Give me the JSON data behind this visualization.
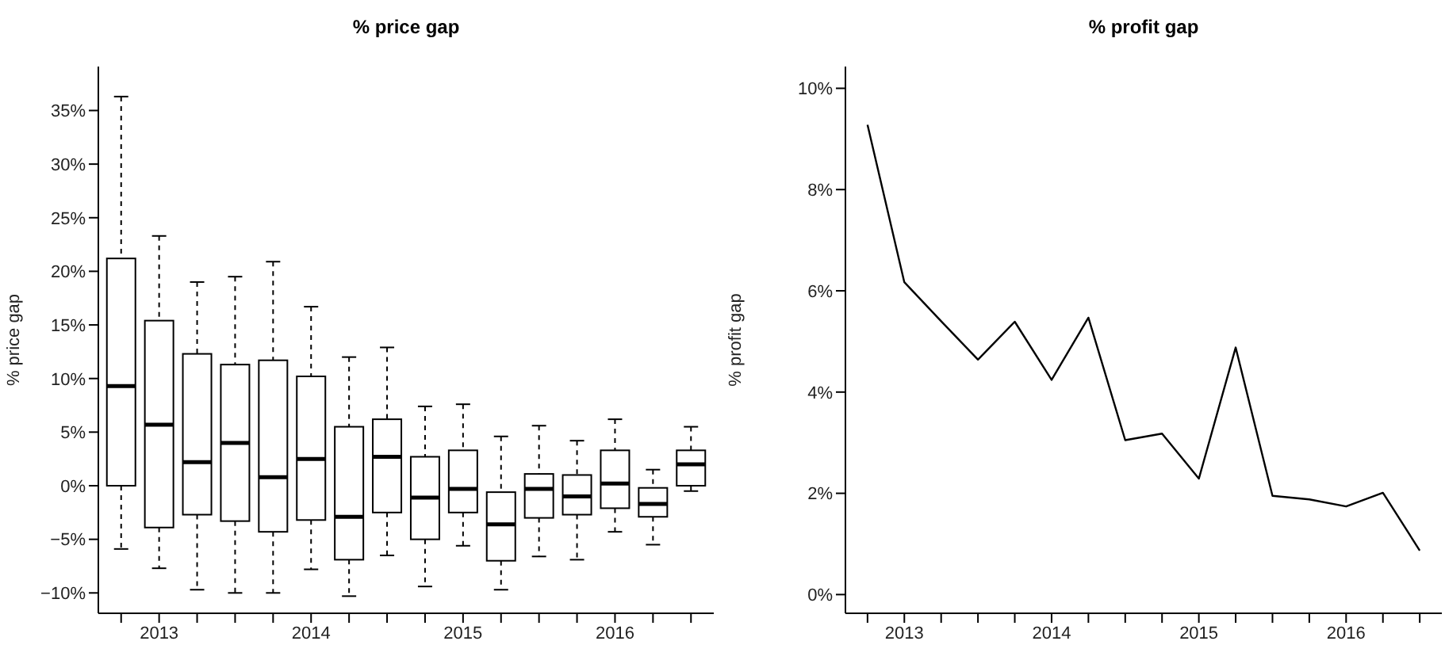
{
  "chart_data": [
    {
      "type": "box",
      "title": "% price gap",
      "ylabel": "% price gap",
      "categories": [
        null,
        "2013",
        null,
        null,
        null,
        "2014",
        null,
        null,
        null,
        "2015",
        null,
        null,
        null,
        "2016",
        null,
        null
      ],
      "boxes": [
        {
          "low": -5.9,
          "q1": 0,
          "median": 9.3,
          "q3": 21.2,
          "high": 36.3
        },
        {
          "low": -7.7,
          "q1": -3.9,
          "median": 5.7,
          "q3": 15.4,
          "high": 23.3
        },
        {
          "low": -9.7,
          "q1": -2.7,
          "median": 2.2,
          "q3": 12.3,
          "high": 19.0
        },
        {
          "low": -10.0,
          "q1": -3.3,
          "median": 4.0,
          "q3": 11.3,
          "high": 19.5
        },
        {
          "low": -10.0,
          "q1": -4.3,
          "median": 0.8,
          "q3": 11.7,
          "high": 20.9
        },
        {
          "low": -7.8,
          "q1": -3.2,
          "median": 2.5,
          "q3": 10.2,
          "high": 16.7
        },
        {
          "low": -10.3,
          "q1": -6.9,
          "median": -2.9,
          "q3": 5.5,
          "high": 12.0
        },
        {
          "low": -6.5,
          "q1": -2.5,
          "median": 2.7,
          "q3": 6.2,
          "high": 12.9
        },
        {
          "low": -9.4,
          "q1": -5.0,
          "median": -1.1,
          "q3": 2.7,
          "high": 7.4
        },
        {
          "low": -5.6,
          "q1": -2.5,
          "median": -0.3,
          "q3": 3.3,
          "high": 7.6
        },
        {
          "low": -9.7,
          "q1": -7.0,
          "median": -3.6,
          "q3": -0.6,
          "high": 4.6
        },
        {
          "low": -6.6,
          "q1": -3.0,
          "median": -0.3,
          "q3": 1.1,
          "high": 5.6
        },
        {
          "low": -6.9,
          "q1": -2.7,
          "median": -1.0,
          "q3": 1.0,
          "high": 4.2
        },
        {
          "low": -4.3,
          "q1": -2.1,
          "median": 0.2,
          "q3": 3.3,
          "high": 6.2
        },
        {
          "low": -5.5,
          "q1": -2.9,
          "median": -1.7,
          "q3": -0.2,
          "high": 1.5
        },
        {
          "low": -0.5,
          "q1": 0.0,
          "median": 2.0,
          "q3": 3.3,
          "high": 5.5
        }
      ],
      "color": "#000000",
      "ylim": [
        -11.9,
        39.1
      ],
      "yticks": [
        {
          "value": -10,
          "label": "−10%"
        },
        {
          "value": -5,
          "label": "−5%"
        },
        {
          "value": 0,
          "label": "0%"
        },
        {
          "value": 5,
          "label": "5%"
        },
        {
          "value": 10,
          "label": "10%"
        },
        {
          "value": 15,
          "label": "15%"
        },
        {
          "value": 20,
          "label": "20%"
        },
        {
          "value": 25,
          "label": "25%"
        },
        {
          "value": 30,
          "label": "30%"
        },
        {
          "value": 35,
          "label": "35%"
        }
      ],
      "grid": false,
      "legend": false
    },
    {
      "type": "line",
      "title": "% profit gap",
      "ylabel": "% profit gap",
      "categories": [
        null,
        "2013",
        null,
        null,
        null,
        "2014",
        null,
        null,
        null,
        "2015",
        null,
        null,
        null,
        "2016",
        null,
        null
      ],
      "values": [
        9.28,
        6.17,
        5.4,
        4.64,
        5.39,
        4.24,
        5.47,
        3.05,
        3.18,
        2.29,
        4.88,
        1.95,
        1.88,
        1.74,
        2.01,
        0.87
      ],
      "color": "#000000",
      "marker": "none",
      "line_style": "solid",
      "ylim": [
        -0.37,
        10.43
      ],
      "yticks": [
        {
          "value": 0,
          "label": "0%"
        },
        {
          "value": 2,
          "label": "2%"
        },
        {
          "value": 4,
          "label": "4%"
        },
        {
          "value": 6,
          "label": "6%"
        },
        {
          "value": 8,
          "label": "8%"
        },
        {
          "value": 10,
          "label": "10%"
        }
      ],
      "grid": false,
      "legend": false
    }
  ]
}
